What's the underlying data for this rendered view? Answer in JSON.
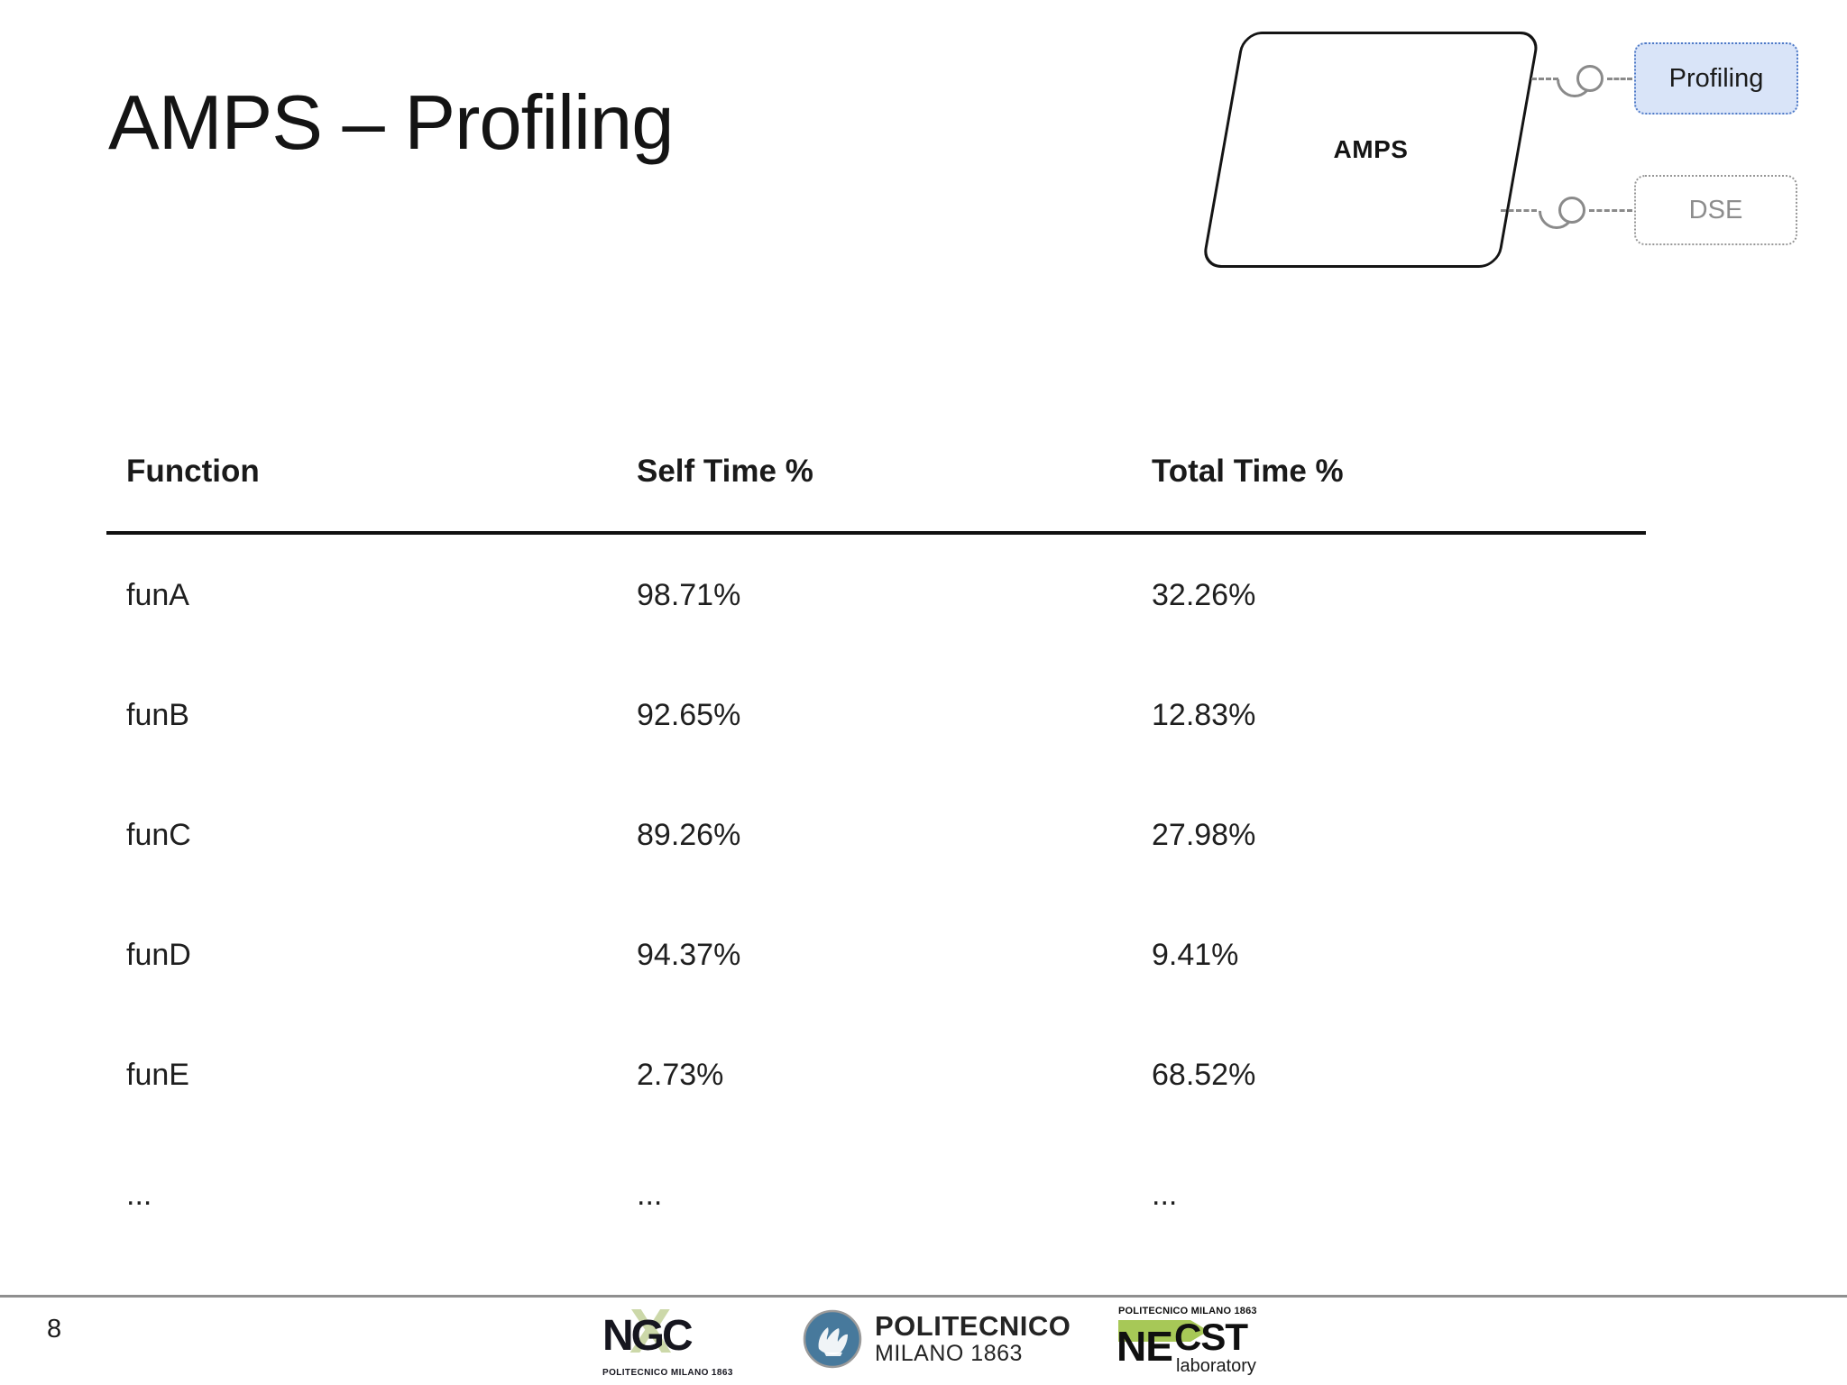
{
  "slide": {
    "title": "AMPS – Profiling",
    "page_number": "8"
  },
  "diagram": {
    "amps_label": "AMPS",
    "profiling_label": "Profiling",
    "dse_label": "DSE",
    "profiling_fill": "#d9e4f8",
    "profiling_border": "#4f7ac7",
    "dse_border": "#979797",
    "dse_text_color": "#8d8d8d",
    "connector_color": "#8a8a8a"
  },
  "table": {
    "headers": [
      "Function",
      "Self Time %",
      "Total Time %"
    ],
    "rows": [
      {
        "function": "funA",
        "self_time": "98.71%",
        "total_time": "32.26%"
      },
      {
        "function": "funB",
        "self_time": "92.65%",
        "total_time": "12.83%"
      },
      {
        "function": "funC",
        "self_time": "89.26%",
        "total_time": "27.98%"
      },
      {
        "function": "funD",
        "self_time": "94.37%",
        "total_time": "9.41%"
      },
      {
        "function": "funE",
        "self_time": "2.73%",
        "total_time": "68.52%"
      },
      {
        "function": "...",
        "self_time": "...",
        "total_time": "..."
      }
    ]
  },
  "footer": {
    "logos": {
      "ngc": {
        "text": "NGC",
        "x_mark": "X",
        "subtext": "POLITECNICO MILANO 1863"
      },
      "polimi": {
        "line1": "POLITECNICO",
        "line2": "MILANO 1863"
      },
      "necst": {
        "top": "POLITECNICO MILANO 1863",
        "ne": "NE",
        "cst": "CST",
        "sub": "laboratory"
      }
    }
  }
}
